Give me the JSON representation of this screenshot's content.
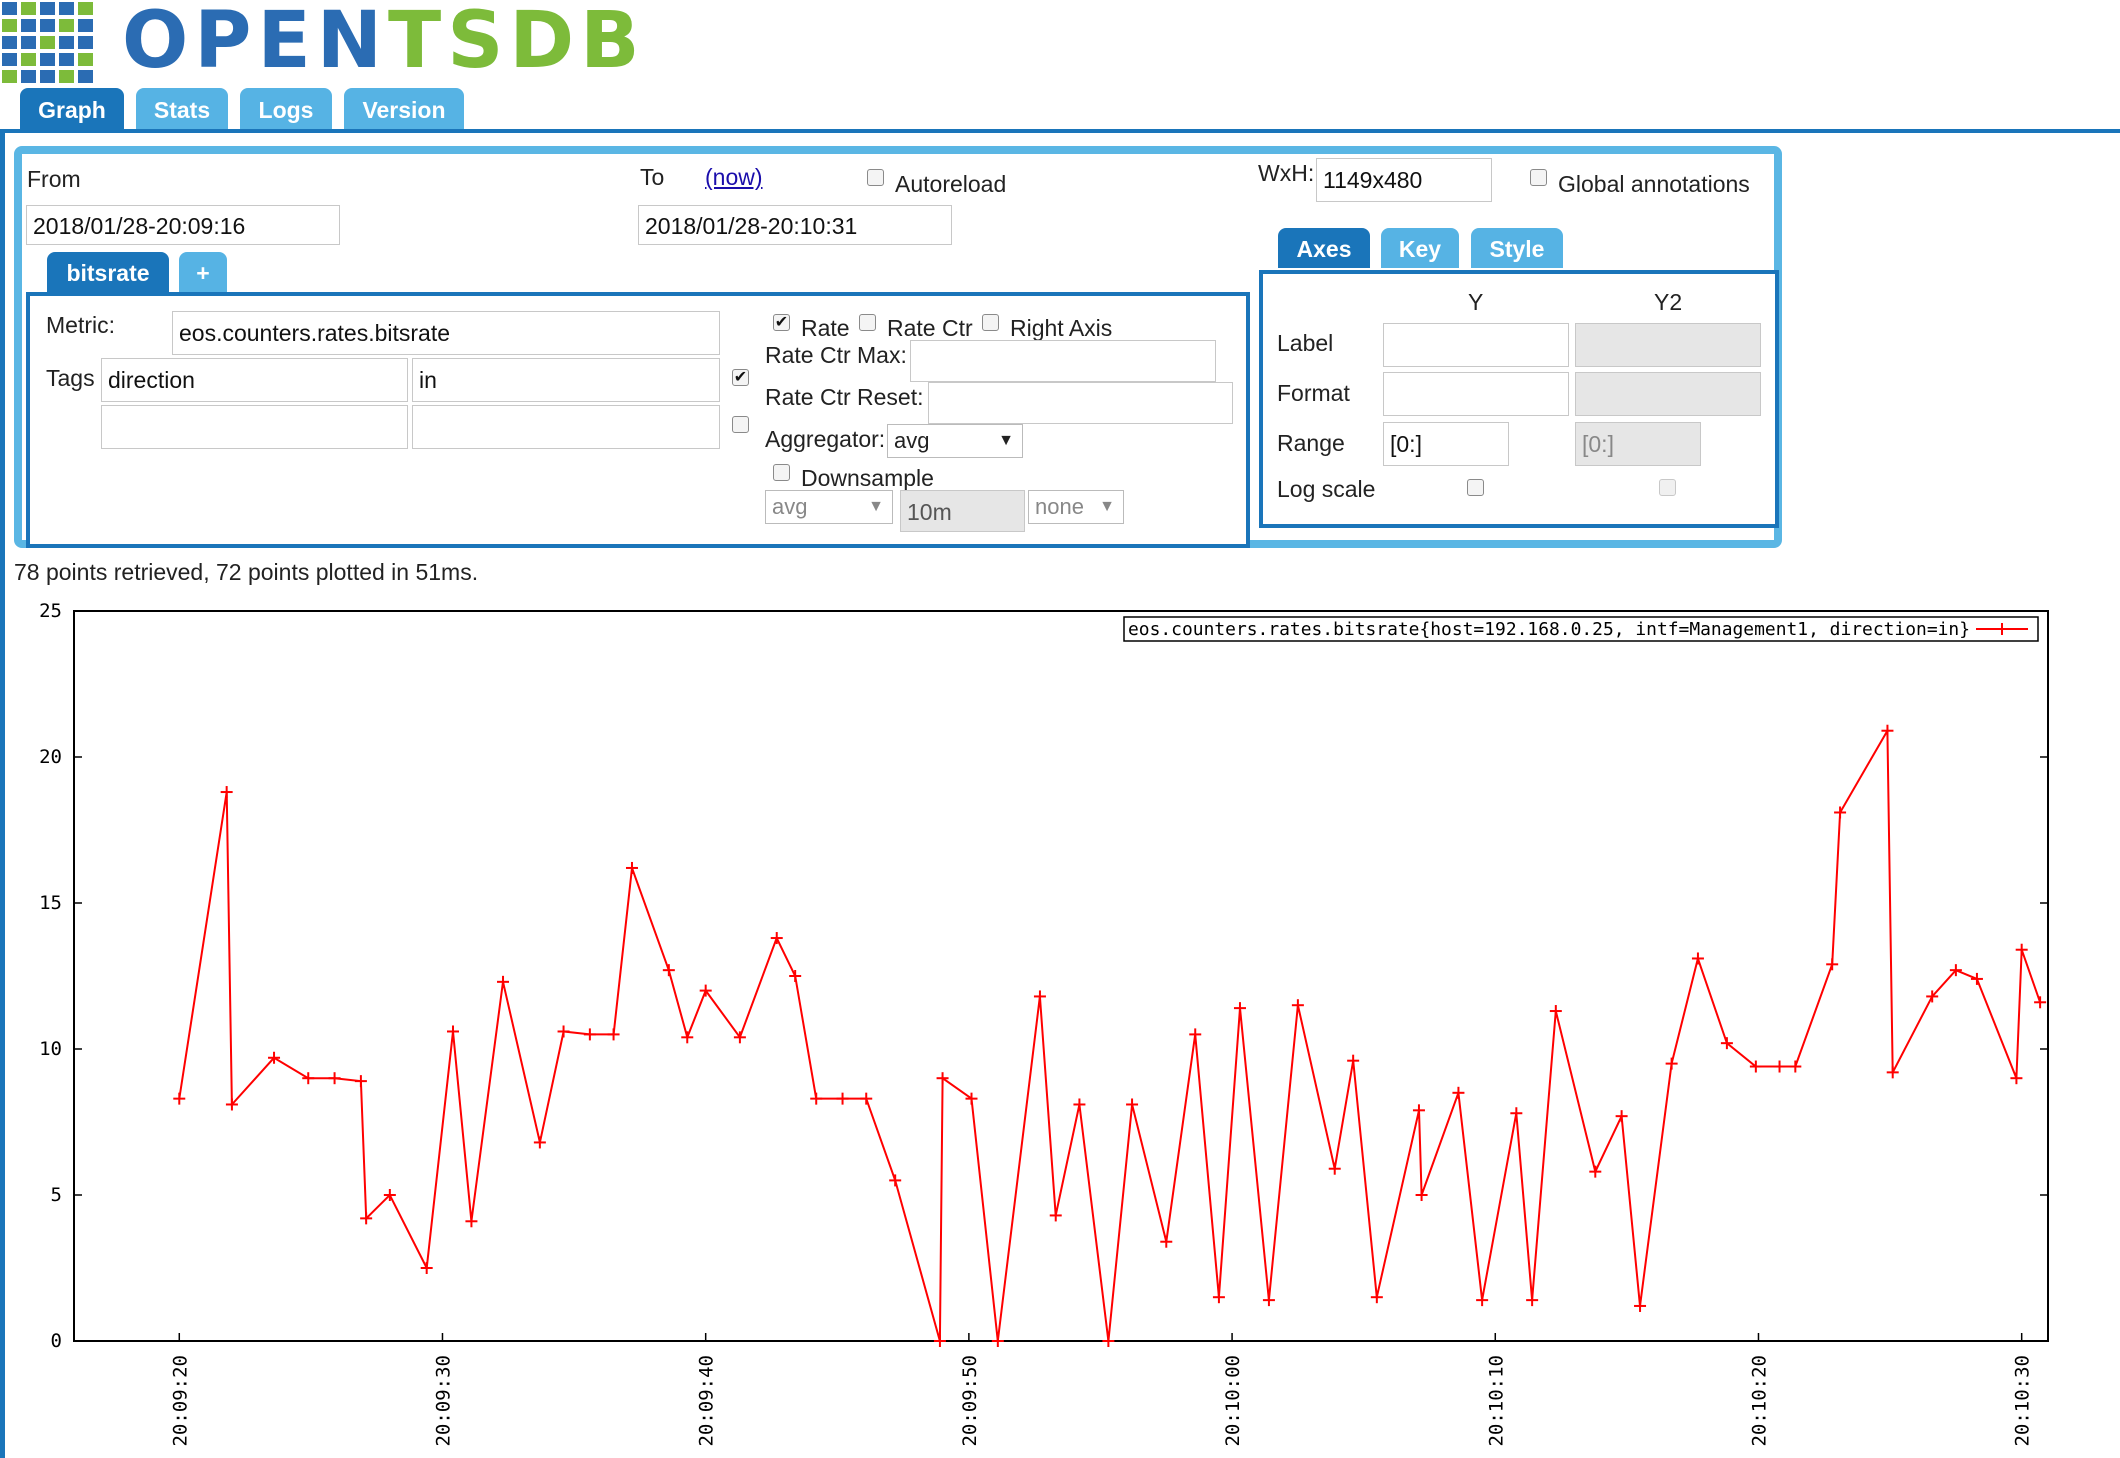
{
  "logo": {
    "text_part1": "OPEN",
    "text_part2": "TSDB"
  },
  "tabs": [
    {
      "label": "Graph",
      "active": true
    },
    {
      "label": "Stats",
      "active": false
    },
    {
      "label": "Logs",
      "active": false
    },
    {
      "label": "Version",
      "active": false
    }
  ],
  "query": {
    "from_label": "From",
    "from_value": "2018/01/28-20:09:16",
    "to_label": "To",
    "now_link": "(now)",
    "to_value": "2018/01/28-20:10:31",
    "autoreload_label": "Autoreload",
    "autoreload_checked": false,
    "wxh_label": "WxH:",
    "wxh_value": "1149x480",
    "global_annotations_label": "Global annotations",
    "global_annotations_checked": false
  },
  "metric_tabs": [
    {
      "label": "bitsrate",
      "active": true
    },
    {
      "label": "+",
      "active": false
    }
  ],
  "metric": {
    "metric_label": "Metric:",
    "metric_value": "eos.counters.rates.bitsrate",
    "tags_label": "Tags",
    "tag1_key": "direction",
    "tag1_value": "in",
    "tag1_checked": true,
    "tag2_key": "",
    "tag2_value": "",
    "tag2_checked": false,
    "rate_label": "Rate",
    "rate_checked": true,
    "rate_ctr_label": "Rate Ctr",
    "rate_ctr_checked": false,
    "right_axis_label": "Right Axis",
    "right_axis_checked": false,
    "rate_ctr_max_label": "Rate Ctr Max:",
    "rate_ctr_reset_label": "Rate Ctr Reset:",
    "aggregator_label": "Aggregator:",
    "aggregator_value": "avg",
    "downsample_label": "Downsample",
    "downsample_checked": false,
    "downsample_agg": "avg",
    "downsample_interval": "10m",
    "downsample_fill": "none"
  },
  "options_tabs": [
    {
      "label": "Axes",
      "active": true
    },
    {
      "label": "Key",
      "active": false
    },
    {
      "label": "Style",
      "active": false
    }
  ],
  "axes": {
    "y_header": "Y",
    "y2_header": "Y2",
    "label_row": "Label",
    "format_row": "Format",
    "range_row": "Range",
    "log_scale_row": "Log scale",
    "y_range": "[0:]",
    "y2_range": "[0:]",
    "y_log_checked": false,
    "y2_log_checked": false
  },
  "status_text": "78 points retrieved, 72 points plotted in 51ms.",
  "chart_data": {
    "type": "line",
    "legend": "eos.counters.rates.bitsrate{host=192.168.0.25, intf=Management1, direction=in}",
    "legend_position": "top-right",
    "grid": true,
    "series_color": "#ff0000",
    "ylim": [
      0,
      25
    ],
    "y_ticks": [
      "0",
      "5",
      "10",
      "15",
      "20",
      "25"
    ],
    "x_start": "20:09:16",
    "x_end": "20:10:31",
    "x_ticks": [
      "20:09:20",
      "20:09:30",
      "20:09:40",
      "20:09:50",
      "20:10:00",
      "20:10:10",
      "20:10:20",
      "20:10:30"
    ],
    "x": [
      "20:09:20.0",
      "20:09:21.8",
      "20:09:22.0",
      "20:09:23.6",
      "20:09:24.9",
      "20:09:25.9",
      "20:09:26.9",
      "20:09:27.1",
      "20:09:28.0",
      "20:09:29.4",
      "20:09:30.4",
      "20:09:31.1",
      "20:09:32.3",
      "20:09:33.7",
      "20:09:34.6",
      "20:09:35.6",
      "20:09:36.5",
      "20:09:37.2",
      "20:09:38.6",
      "20:09:39.3",
      "20:09:40.0",
      "20:09:41.3",
      "20:09:42.7",
      "20:09:43.4",
      "20:09:44.2",
      "20:09:45.2",
      "20:09:46.1",
      "20:09:47.2",
      "20:09:48.9",
      "20:09:49.0",
      "20:09:50.1",
      "20:09:51.1",
      "20:09:52.7",
      "20:09:53.3",
      "20:09:54.2",
      "20:09:55.3",
      "20:09:56.2",
      "20:09:57.5",
      "20:09:58.6",
      "20:09:59.5",
      "20:10:00.3",
      "20:10:01.4",
      "20:10:02.5",
      "20:10:03.9",
      "20:10:04.6",
      "20:10:05.5",
      "20:10:07.1",
      "20:10:07.2",
      "20:10:08.6",
      "20:10:09.5",
      "20:10:10.8",
      "20:10:11.4",
      "20:10:12.3",
      "20:10:13.8",
      "20:10:14.8",
      "20:10:15.5",
      "20:10:16.7",
      "20:10:17.7",
      "20:10:18.8",
      "20:10:19.9",
      "20:10:20.8",
      "20:10:21.4",
      "20:10:22.8",
      "20:10:23.1",
      "20:10:24.9",
      "20:10:25.1",
      "20:10:26.6",
      "20:10:27.5",
      "20:10:28.3",
      "20:10:29.8",
      "20:10:30.0",
      "20:10:30.7"
    ],
    "values": [
      8.3,
      18.8,
      8.1,
      9.7,
      9.0,
      9.0,
      8.9,
      4.2,
      5.0,
      2.5,
      10.6,
      4.1,
      12.3,
      6.8,
      10.6,
      10.5,
      10.5,
      16.2,
      12.7,
      10.4,
      12.0,
      10.4,
      13.8,
      12.5,
      8.3,
      8.3,
      8.3,
      5.5,
      0.0,
      9.0,
      8.3,
      0.0,
      11.8,
      4.3,
      8.1,
      0.0,
      8.1,
      3.4,
      10.5,
      1.5,
      11.4,
      1.4,
      11.5,
      5.9,
      9.6,
      1.5,
      7.9,
      5.0,
      8.5,
      1.4,
      7.8,
      1.4,
      11.3,
      5.8,
      7.7,
      1.2,
      9.5,
      13.1,
      10.2,
      9.4,
      9.4,
      9.4,
      12.9,
      18.1,
      20.9,
      9.2,
      11.8,
      12.7,
      12.4,
      9.0,
      13.4,
      11.6
    ]
  }
}
